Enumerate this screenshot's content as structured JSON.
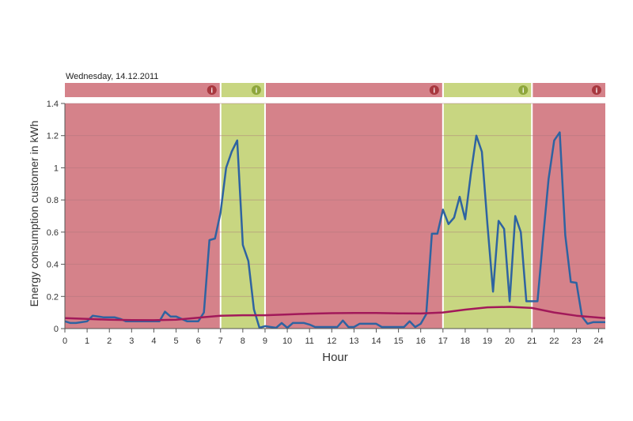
{
  "date_label": "Wednesday, 14.12.2011",
  "colors": {
    "bad": "#d5828a",
    "good": "#c8d681",
    "bad_badge": "#a8383f",
    "good_badge": "#8ea63c",
    "consumption_line": "#2e63a1",
    "average_line": "#a2195a",
    "grid": "#a9737a",
    "axis": "#555555"
  },
  "badge_glyph": "i",
  "chart_data": {
    "type": "line",
    "xlabel": "Hour",
    "ylabel": "Energy consumption customer in kWh",
    "xlim": [
      0,
      24.3
    ],
    "ylim": [
      0,
      1.4
    ],
    "x_ticks": [
      0,
      1,
      2,
      3,
      4,
      5,
      6,
      7,
      8,
      9,
      10,
      11,
      12,
      13,
      14,
      15,
      16,
      17,
      18,
      19,
      20,
      21,
      22,
      23,
      24
    ],
    "y_ticks": [
      0,
      0.2,
      0.4,
      0.6,
      0.8,
      1,
      1.2,
      1.4
    ],
    "y_tick_labels": [
      "0",
      "0.2",
      "0.4",
      "0.6",
      "0.8",
      "1",
      "1.2",
      "1.4"
    ],
    "grid": true,
    "periods": [
      {
        "start": 0,
        "end": 7,
        "status": "bad"
      },
      {
        "start": 7,
        "end": 9,
        "status": "good"
      },
      {
        "start": 9,
        "end": 17,
        "status": "bad"
      },
      {
        "start": 17,
        "end": 21,
        "status": "good"
      },
      {
        "start": 21,
        "end": 24.3,
        "status": "bad"
      }
    ],
    "series": [
      {
        "kind": "consumption",
        "points": [
          [
            0,
            0.045
          ],
          [
            0.25,
            0.035
          ],
          [
            0.5,
            0.035
          ],
          [
            0.75,
            0.04
          ],
          [
            1,
            0.045
          ],
          [
            1.25,
            0.08
          ],
          [
            1.5,
            0.075
          ],
          [
            1.75,
            0.07
          ],
          [
            2,
            0.07
          ],
          [
            2.25,
            0.07
          ],
          [
            2.5,
            0.06
          ],
          [
            2.75,
            0.045
          ],
          [
            3,
            0.045
          ],
          [
            3.5,
            0.045
          ],
          [
            4,
            0.045
          ],
          [
            4.25,
            0.045
          ],
          [
            4.5,
            0.105
          ],
          [
            4.75,
            0.075
          ],
          [
            5,
            0.075
          ],
          [
            5.25,
            0.06
          ],
          [
            5.5,
            0.045
          ],
          [
            5.75,
            0.045
          ],
          [
            6,
            0.045
          ],
          [
            6.25,
            0.1
          ],
          [
            6.5,
            0.55
          ],
          [
            6.75,
            0.56
          ],
          [
            7,
            0.72
          ],
          [
            7.25,
            1.0
          ],
          [
            7.5,
            1.1
          ],
          [
            7.75,
            1.17
          ],
          [
            8,
            0.52
          ],
          [
            8.25,
            0.42
          ],
          [
            8.5,
            0.12
          ],
          [
            8.75,
            0.005
          ],
          [
            9,
            0.015
          ],
          [
            9.25,
            0.01
          ],
          [
            9.5,
            0.005
          ],
          [
            9.75,
            0.035
          ],
          [
            10,
            0.005
          ],
          [
            10.25,
            0.035
          ],
          [
            10.5,
            0.035
          ],
          [
            10.75,
            0.035
          ],
          [
            11,
            0.025
          ],
          [
            11.25,
            0.01
          ],
          [
            11.5,
            0.01
          ],
          [
            11.75,
            0.01
          ],
          [
            12,
            0.01
          ],
          [
            12.25,
            0.01
          ],
          [
            12.5,
            0.05
          ],
          [
            12.75,
            0.01
          ],
          [
            13,
            0.01
          ],
          [
            13.25,
            0.03
          ],
          [
            13.5,
            0.03
          ],
          [
            13.75,
            0.03
          ],
          [
            14,
            0.03
          ],
          [
            14.25,
            0.01
          ],
          [
            14.5,
            0.01
          ],
          [
            14.75,
            0.01
          ],
          [
            15,
            0.01
          ],
          [
            15.25,
            0.01
          ],
          [
            15.5,
            0.045
          ],
          [
            15.75,
            0.01
          ],
          [
            16,
            0.03
          ],
          [
            16.25,
            0.09
          ],
          [
            16.5,
            0.59
          ],
          [
            16.75,
            0.59
          ],
          [
            17,
            0.74
          ],
          [
            17.25,
            0.65
          ],
          [
            17.5,
            0.69
          ],
          [
            17.75,
            0.82
          ],
          [
            18,
            0.68
          ],
          [
            18.25,
            0.96
          ],
          [
            18.5,
            1.2
          ],
          [
            18.75,
            1.1
          ],
          [
            19,
            0.65
          ],
          [
            19.25,
            0.23
          ],
          [
            19.5,
            0.67
          ],
          [
            19.75,
            0.62
          ],
          [
            20,
            0.17
          ],
          [
            20.25,
            0.7
          ],
          [
            20.5,
            0.6
          ],
          [
            20.75,
            0.17
          ],
          [
            21,
            0.17
          ],
          [
            21.25,
            0.17
          ],
          [
            21.5,
            0.56
          ],
          [
            21.75,
            0.93
          ],
          [
            22,
            1.17
          ],
          [
            22.25,
            1.22
          ],
          [
            22.5,
            0.58
          ],
          [
            22.75,
            0.29
          ],
          [
            23,
            0.285
          ],
          [
            23.25,
            0.075
          ],
          [
            23.5,
            0.03
          ],
          [
            23.75,
            0.04
          ],
          [
            24.3,
            0.04
          ]
        ]
      },
      {
        "kind": "average",
        "points": [
          [
            0,
            0.065
          ],
          [
            1,
            0.06
          ],
          [
            2,
            0.055
          ],
          [
            3,
            0.053
          ],
          [
            4,
            0.052
          ],
          [
            5,
            0.055
          ],
          [
            6,
            0.068
          ],
          [
            7,
            0.08
          ],
          [
            8,
            0.083
          ],
          [
            9,
            0.083
          ],
          [
            10,
            0.088
          ],
          [
            11,
            0.093
          ],
          [
            12,
            0.096
          ],
          [
            13,
            0.097
          ],
          [
            14,
            0.097
          ],
          [
            15,
            0.095
          ],
          [
            16,
            0.094
          ],
          [
            17,
            0.1
          ],
          [
            18,
            0.118
          ],
          [
            19,
            0.132
          ],
          [
            20,
            0.135
          ],
          [
            21,
            0.128
          ],
          [
            22,
            0.1
          ],
          [
            23,
            0.08
          ],
          [
            24.3,
            0.065
          ]
        ]
      }
    ]
  }
}
